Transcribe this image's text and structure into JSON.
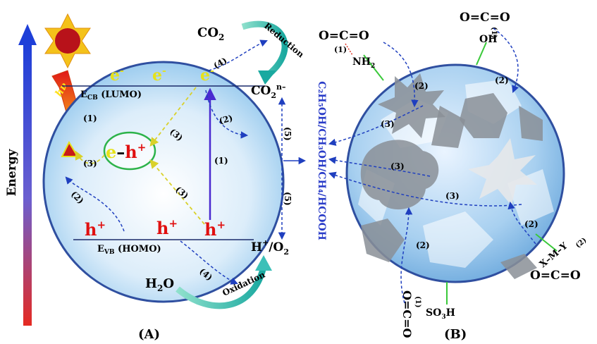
{
  "panel_a": {
    "label": "(A)",
    "energy_axis": "Energy",
    "photon": "hν",
    "cb_band": "E",
    "cb_sub": "CB",
    "cb_rest": " (LUMO)",
    "vb_band": "E",
    "vb_sub": "VB",
    "vb_rest": " (HOMO)",
    "electron": "e",
    "electron_sup": "-",
    "hole": "h",
    "hole_sup": "+",
    "pair_e": "e",
    "pair_sep": "–",
    "pair_h": "h",
    "pair_sup": "+",
    "co2": "CO",
    "co2_sub": "2",
    "co2n": "CO",
    "co2n_sub": "2",
    "co2n_sup": "n–",
    "reduction": "Reduction",
    "oxidation": "Oxidation",
    "h2o": "H",
    "h2o_sub": "2",
    "h2o_rest": "O",
    "h_o2": "H",
    "h_o2_sup": "+",
    "h_o2_rest": "/O",
    "h_o2_sub": "2",
    "products": "C₂H₅OH/CH₃OH/CH₄/HCOOH",
    "steps": {
      "s1a": "(1)",
      "s1b": "(1)",
      "s2a": "(2)",
      "s2b": "(2)",
      "s3a": "(3)",
      "s3b": "(3)",
      "s3c": "(3)",
      "s4a": "(4)",
      "s4b": "(4)",
      "s5a": "(5)",
      "s5b": "(5)"
    }
  },
  "panel_b": {
    "label": "(B)",
    "group_tl": "O=C=O",
    "group_tl_step": "(1)",
    "group_tl_amine": "NH",
    "group_tl_amine_sub": "2",
    "group_top": "O=C=O",
    "group_top_step": "(1)",
    "group_top_oh": "OH",
    "group_bottom": "O=C=O",
    "group_bottom_step": "(1)",
    "group_bottom_so3h": "SO",
    "group_bottom_so3h_sub": "3",
    "group_bottom_so3h_rest": "H",
    "group_right": "O=C=O",
    "group_right_xmy": "X–M–Y",
    "group_right_step": "(2)",
    "steps": {
      "s2a": "(2)",
      "s2b": "(2)",
      "s2c": "(2)",
      "s2d": "(2)",
      "s3a": "(3)",
      "s3b": "(3)",
      "s3c": "(3)"
    }
  },
  "colors": {
    "energy_arrow_top": "#1a3fd6",
    "energy_arrow_bottom": "#e8261e",
    "sphere_edge": "#2f4fa0",
    "dashed_arrow": "#1f3fbf",
    "electron_text": "#e6e21a",
    "hole_text": "#e01010",
    "products_text": "#2a3cc8",
    "oxidation_arrow": "#3cc0b8"
  }
}
